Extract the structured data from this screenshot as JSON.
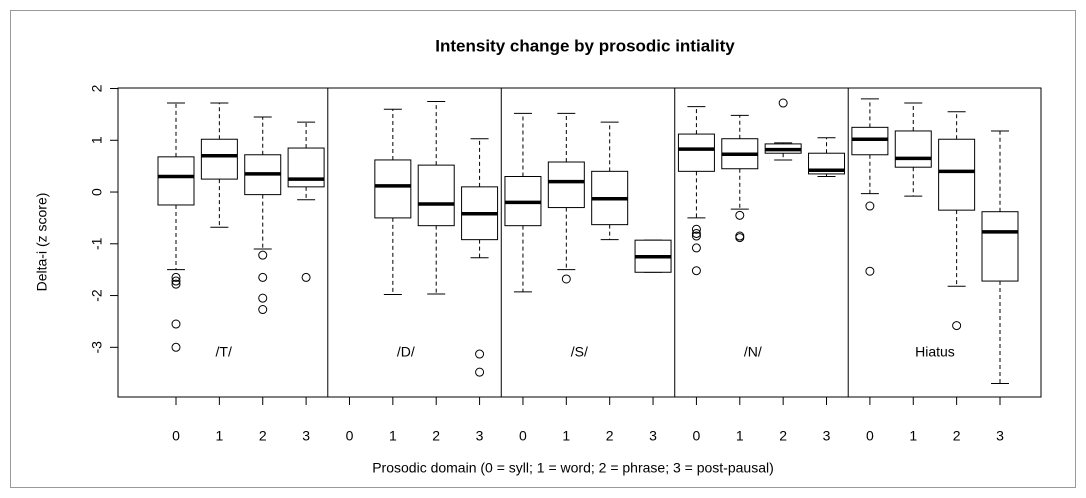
{
  "chart_data": {
    "type": "box",
    "title": "Intensity change by prosodic intiality",
    "x_label": "Prosodic domain (0 = syll; 1 = word; 2 = phrase; 3 = post-pausal)",
    "y_label": "Delta-i (z score)",
    "ylim": [
      -3.96,
      2.01
    ],
    "yticks": [
      -3,
      -2,
      -1,
      0,
      1,
      2
    ],
    "groups": [
      {
        "label": "/T/",
        "categories": [
          "0",
          "1",
          "2",
          "3"
        ],
        "boxes": [
          {
            "median": 0.3,
            "q1": -0.25,
            "q3": 0.68,
            "whisker_low": -1.5,
            "whisker_high": 1.72,
            "outliers": [
              -1.65,
              -1.72,
              -1.78,
              -2.55,
              -3.0
            ]
          },
          {
            "median": 0.7,
            "q1": 0.25,
            "q3": 1.02,
            "whisker_low": -0.68,
            "whisker_high": 1.72,
            "outliers": []
          },
          {
            "median": 0.35,
            "q1": -0.05,
            "q3": 0.72,
            "whisker_low": -1.1,
            "whisker_high": 1.45,
            "outliers": [
              -1.22,
              -1.65,
              -2.05,
              -2.27
            ]
          },
          {
            "median": 0.25,
            "q1": 0.1,
            "q3": 0.85,
            "whisker_low": -0.15,
            "whisker_high": 1.35,
            "outliers": [
              -1.65
            ]
          }
        ]
      },
      {
        "label": "/D/",
        "categories": [
          "0",
          "1",
          "2",
          "3"
        ],
        "boxes": [
          null,
          {
            "median": 0.12,
            "q1": -0.5,
            "q3": 0.62,
            "whisker_low": -1.98,
            "whisker_high": 1.6,
            "outliers": []
          },
          {
            "median": -0.23,
            "q1": -0.65,
            "q3": 0.52,
            "whisker_low": -1.97,
            "whisker_high": 1.75,
            "outliers": []
          },
          {
            "median": -0.42,
            "q1": -0.92,
            "q3": 0.1,
            "whisker_low": -1.27,
            "whisker_high": 1.03,
            "outliers": [
              -3.13,
              -3.48
            ]
          }
        ]
      },
      {
        "label": "/S/",
        "categories": [
          "0",
          "1",
          "2",
          "3"
        ],
        "boxes": [
          {
            "median": -0.2,
            "q1": -0.65,
            "q3": 0.3,
            "whisker_low": -1.93,
            "whisker_high": 1.52,
            "outliers": []
          },
          {
            "median": 0.2,
            "q1": -0.3,
            "q3": 0.58,
            "whisker_low": -1.5,
            "whisker_high": 1.52,
            "outliers": [
              -1.68
            ]
          },
          {
            "median": -0.13,
            "q1": -0.63,
            "q3": 0.4,
            "whisker_low": -0.92,
            "whisker_high": 1.35,
            "outliers": []
          },
          {
            "median": -1.25,
            "q1": -1.55,
            "q3": -0.93,
            "whisker_low": -1.55,
            "whisker_high": -0.93,
            "outliers": []
          }
        ]
      },
      {
        "label": "/N/",
        "categories": [
          "0",
          "1",
          "2",
          "3"
        ],
        "boxes": [
          {
            "median": 0.83,
            "q1": 0.4,
            "q3": 1.12,
            "whisker_low": -0.5,
            "whisker_high": 1.65,
            "outliers": [
              -0.72,
              -0.8,
              -0.85,
              -1.08,
              -1.52
            ]
          },
          {
            "median": 0.73,
            "q1": 0.45,
            "q3": 1.03,
            "whisker_low": -0.33,
            "whisker_high": 1.48,
            "outliers": [
              -0.45,
              -0.85,
              -0.88
            ]
          },
          {
            "median": 0.82,
            "q1": 0.75,
            "q3": 0.93,
            "whisker_low": 0.62,
            "whisker_high": 0.95,
            "outliers": [
              1.72
            ]
          },
          {
            "median": 0.42,
            "q1": 0.35,
            "q3": 0.75,
            "whisker_low": 0.3,
            "whisker_high": 1.05,
            "outliers": []
          }
        ]
      },
      {
        "label": "Hiatus",
        "categories": [
          "0",
          "1",
          "2",
          "3"
        ],
        "boxes": [
          {
            "median": 1.02,
            "q1": 0.72,
            "q3": 1.25,
            "whisker_low": -0.03,
            "whisker_high": 1.8,
            "outliers": [
              -0.27,
              -1.53
            ]
          },
          {
            "median": 0.65,
            "q1": 0.48,
            "q3": 1.18,
            "whisker_low": -0.08,
            "whisker_high": 1.72,
            "outliers": []
          },
          {
            "median": 0.4,
            "q1": -0.35,
            "q3": 1.02,
            "whisker_low": -1.82,
            "whisker_high": 1.55,
            "outliers": [
              -2.58
            ]
          },
          {
            "median": -0.77,
            "q1": -1.72,
            "q3": -0.38,
            "whisker_low": -3.7,
            "whisker_high": 1.18,
            "outliers": []
          }
        ]
      }
    ]
  }
}
